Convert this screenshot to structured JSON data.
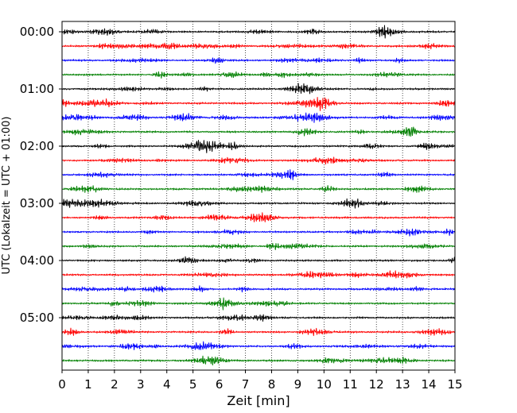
{
  "chart_data": {
    "type": "line",
    "title": "",
    "xlabel": "Zeit  [min]",
    "ylabel": "UTC (Lokalzeit = UTC + 01:00)",
    "xlim": [
      0,
      15
    ],
    "x_ticks": [
      "0",
      "1",
      "2",
      "3",
      "4",
      "5",
      "6",
      "7",
      "8",
      "9",
      "10",
      "11",
      "12",
      "13",
      "14",
      "15"
    ],
    "y_tick_labels": [
      "00:00",
      "01:00",
      "02:00",
      "03:00",
      "04:00",
      "05:00"
    ],
    "grid": "vertical dotted lines at each minute",
    "row_minutes_per_trace": 15,
    "traces_per_hour": 4,
    "trace_count": 24,
    "color_cycle": [
      "#000000",
      "#ff0000",
      "#0000ff",
      "#008000"
    ],
    "series": [
      {
        "start": "00:00"
      },
      {
        "start": "00:15"
      },
      {
        "start": "00:30"
      },
      {
        "start": "00:45"
      },
      {
        "start": "01:00"
      },
      {
        "start": "01:15"
      },
      {
        "start": "01:30"
      },
      {
        "start": "01:45"
      },
      {
        "start": "02:00"
      },
      {
        "start": "02:15"
      },
      {
        "start": "02:30"
      },
      {
        "start": "02:45"
      },
      {
        "start": "03:00"
      },
      {
        "start": "03:15"
      },
      {
        "start": "03:30"
      },
      {
        "start": "03:45"
      },
      {
        "start": "04:00"
      },
      {
        "start": "04:15"
      },
      {
        "start": "04:30"
      },
      {
        "start": "04:45"
      },
      {
        "start": "05:00"
      },
      {
        "start": "05:15"
      },
      {
        "start": "05:30"
      },
      {
        "start": "05:45"
      }
    ]
  }
}
